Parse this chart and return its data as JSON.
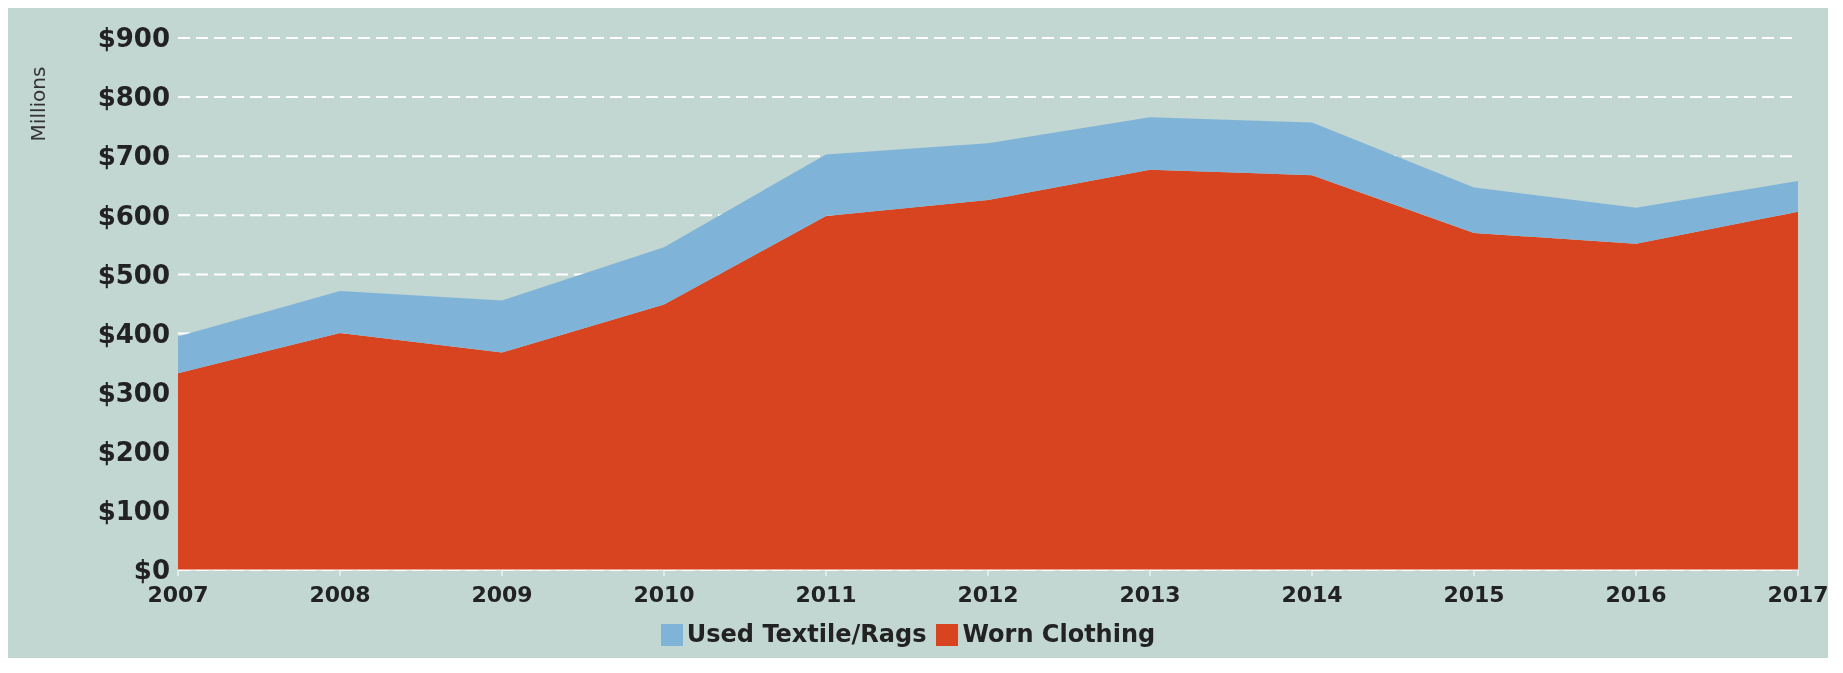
{
  "chart_data": {
    "type": "area",
    "stacked": true,
    "ylabel": "Millions",
    "categories": [
      "2007",
      "2008",
      "2009",
      "2010",
      "2011",
      "2012",
      "2013",
      "2014",
      "2015",
      "2016",
      "2017"
    ],
    "series": [
      {
        "name": "Worn Clothing",
        "color": "#d84420",
        "values": [
          333,
          401,
          368,
          449,
          599,
          626,
          677,
          668,
          570,
          552,
          606
        ]
      },
      {
        "name": "Used Textile/Rags",
        "color": "#7fb3d8",
        "values": [
          62,
          71,
          88,
          97,
          104,
          96,
          89,
          89,
          77,
          61,
          52
        ]
      }
    ],
    "ylim": [
      0,
      900
    ],
    "yticks": [
      {
        "value": 0,
        "label": "$0"
      },
      {
        "value": 100,
        "label": "$100"
      },
      {
        "value": 200,
        "label": "$200"
      },
      {
        "value": 300,
        "label": "$300"
      },
      {
        "value": 400,
        "label": "$400"
      },
      {
        "value": 500,
        "label": "$500"
      },
      {
        "value": 600,
        "label": "$600"
      },
      {
        "value": 700,
        "label": "$700"
      },
      {
        "value": 800,
        "label": "$800"
      },
      {
        "value": 900,
        "label": "$900"
      }
    ],
    "grid": "y",
    "legend": "bottom"
  }
}
